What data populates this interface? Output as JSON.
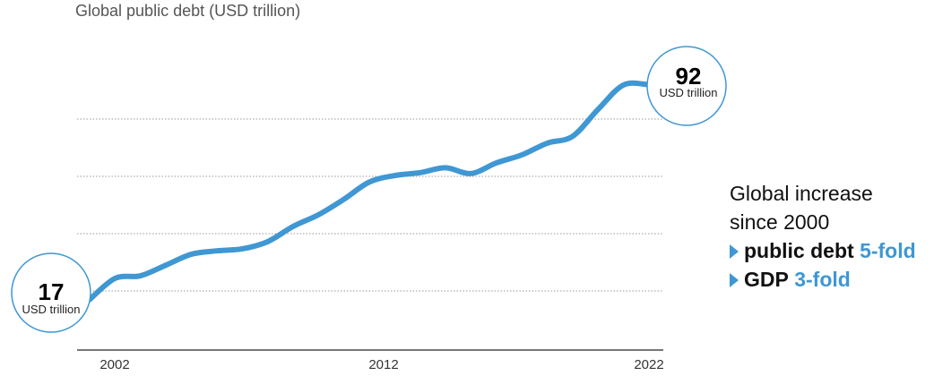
{
  "chart_data": {
    "type": "line",
    "title": "Global public debt (USD trillion)",
    "x": [
      2000,
      2001,
      2002,
      2003,
      2004,
      2005,
      2006,
      2007,
      2008,
      2009,
      2010,
      2011,
      2012,
      2013,
      2014,
      2015,
      2016,
      2017,
      2018,
      2019,
      2020,
      2021,
      2022
    ],
    "values": [
      17,
      24.4,
      25.3,
      29,
      32.8,
      34,
      34.7,
      37.2,
      42.5,
      46.6,
      52,
      58,
      60.3,
      61.3,
      63,
      61,
      64.7,
      67.5,
      71.6,
      74,
      83.4,
      91.9,
      92
    ],
    "x_ticks": [
      "2002",
      "2012",
      "2022"
    ],
    "gridlines_y": [
      20,
      40,
      60,
      80
    ],
    "ylim": [
      0,
      100
    ],
    "grid": true,
    "line_color": "#3f97d3",
    "start_annotation": {
      "value": "17",
      "unit": "USD trillion"
    },
    "end_annotation": {
      "value": "92",
      "unit": "USD trillion"
    }
  },
  "side_note": {
    "line1": "Global increase",
    "line2": "since 2000",
    "item1_label": "public debt",
    "item1_value": "5-fold",
    "item2_label": "GDP",
    "item2_value": "3-fold",
    "accent": "#3f97d3"
  }
}
